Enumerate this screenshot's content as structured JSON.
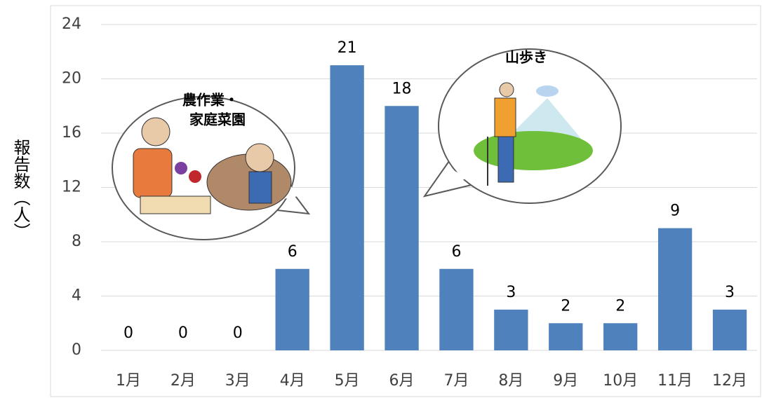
{
  "chart_data": {
    "type": "bar",
    "ylabel": "報告数（人）",
    "categories": [
      "1月",
      "2月",
      "3月",
      "4月",
      "5月",
      "6月",
      "7月",
      "8月",
      "9月",
      "10月",
      "11月",
      "12月"
    ],
    "values": [
      0,
      0,
      0,
      6,
      21,
      18,
      6,
      3,
      2,
      2,
      9,
      3
    ],
    "color": "#4f81bd",
    "ylim": [
      0,
      24
    ],
    "yticks": [
      0,
      4,
      8,
      12,
      16,
      20,
      24
    ],
    "grid": true,
    "annotations": [
      "農作業・",
      "家庭菜園",
      "山歩き"
    ]
  }
}
